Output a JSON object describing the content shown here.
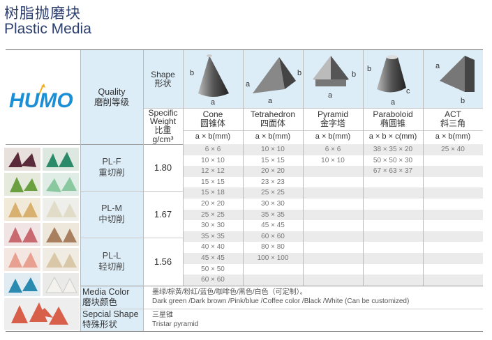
{
  "title": {
    "cn": "树脂抛磨块",
    "en": "Plastic Media"
  },
  "logo": {
    "text": "HUMO",
    "color": "#1a8fd6"
  },
  "header": {
    "quality_en": "Quality",
    "quality_cn": "磨削等级",
    "shape_en": "Shape",
    "shape_cn": "形状",
    "sw_en1": "Specific",
    "sw_en2": "Weight",
    "sw_cn": "比重",
    "sw_unit": "g/cm³",
    "dim_labels": {
      "a": "a",
      "b": "b",
      "c": "c"
    }
  },
  "shapes": [
    {
      "en": "Cone",
      "cn": "圆锥体",
      "unit": "a × b(mm)",
      "icon": "cone"
    },
    {
      "en": "Tetrahedron",
      "cn": "四面体",
      "unit": "a × b(mm)",
      "icon": "tetrahedron"
    },
    {
      "en": "Pyramid",
      "cn": "金字塔",
      "unit": "a × b(mm)",
      "icon": "pyramid"
    },
    {
      "en": "Paraboloid",
      "cn": "椭圆锥",
      "unit": "a × b × c(mm)",
      "icon": "paraboloid"
    },
    {
      "en": "ACT",
      "cn": "斜三角",
      "unit": "a × b(mm)",
      "icon": "act"
    }
  ],
  "grades": [
    {
      "code": "PL-F",
      "cn": "重切削",
      "sw": "1.80"
    },
    {
      "code": "PL-M",
      "cn": "中切削",
      "sw": "1.67"
    },
    {
      "code": "PL-L",
      "cn": "轻切削",
      "sw": "1.56"
    }
  ],
  "rows": [
    [
      "6 × 6",
      "10 × 10",
      "6 × 6",
      "38 × 35 × 20",
      "25 × 40"
    ],
    [
      "10 × 10",
      "15 × 15",
      "10 × 10",
      "50 × 50 × 30",
      ""
    ],
    [
      "12 × 12",
      "20 × 20",
      "",
      "67 × 63 × 37",
      ""
    ],
    [
      "15 × 15",
      "23 × 23",
      "",
      "",
      ""
    ],
    [
      "15 × 18",
      "25 × 25",
      "",
      "",
      ""
    ],
    [
      "20 × 20",
      "30 × 30",
      "",
      "",
      ""
    ],
    [
      "25 × 25",
      "35 × 35",
      "",
      "",
      ""
    ],
    [
      "30 × 30",
      "45 × 45",
      "",
      "",
      ""
    ],
    [
      "35 × 35",
      "60 × 60",
      "",
      "",
      ""
    ],
    [
      "40 × 40",
      "80 × 80",
      "",
      "",
      ""
    ],
    [
      "45 × 45",
      "100 × 100",
      "",
      "",
      ""
    ],
    [
      "50 × 50",
      "",
      "",
      "",
      ""
    ],
    [
      "60 × 60",
      "",
      "",
      "",
      ""
    ]
  ],
  "media_color": {
    "label_en": "Media Color",
    "label_cn": "磨块颜色",
    "value_cn": "墨绿/棕黄/粉红/蓝色/咖啡色/黑色/白色（可定制）。",
    "value_en": "Dark green /Dark brown /Pink/blue /Coffee color /Black /White (Can be customized)"
  },
  "special_shape": {
    "label_en": "Sepcial Shape",
    "label_cn": "特殊形状",
    "value_cn": "三星锥",
    "value_en": "Tristar pyramid"
  },
  "colors": {
    "title": "#2d3f6e",
    "header_bg": "#dcedf8",
    "stripe": "#ebebeb"
  }
}
